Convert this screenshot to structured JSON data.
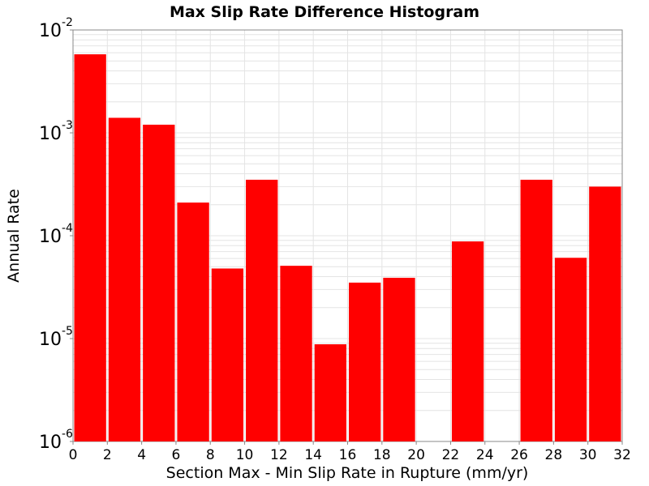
{
  "chart_data": {
    "type": "bar",
    "title": "Max Slip Rate Difference Histogram",
    "xlabel": "Section Max - Min Slip Rate in Rupture (mm/yr)",
    "ylabel": "Annual Rate",
    "xlim": [
      0,
      32
    ],
    "ylim": [
      1e-06,
      0.01
    ],
    "yscale": "log",
    "bin_width": 2,
    "x_ticks": [
      "0",
      "2",
      "4",
      "6",
      "8",
      "10",
      "12",
      "14",
      "16",
      "18",
      "20",
      "22",
      "24",
      "26",
      "28",
      "30",
      "32"
    ],
    "y_ticks": [
      {
        "base": "10",
        "exp": "-6"
      },
      {
        "base": "10",
        "exp": "-5"
      },
      {
        "base": "10",
        "exp": "-4"
      },
      {
        "base": "10",
        "exp": "-3"
      },
      {
        "base": "10",
        "exp": "-2"
      }
    ],
    "grid": true,
    "bar_color": "#ff0000",
    "bins": [
      {
        "x": 1,
        "value": 0.0058
      },
      {
        "x": 3,
        "value": 0.0014
      },
      {
        "x": 5,
        "value": 0.0012
      },
      {
        "x": 7,
        "value": 0.00021
      },
      {
        "x": 9,
        "value": 4.8e-05
      },
      {
        "x": 11,
        "value": 0.00035
      },
      {
        "x": 13,
        "value": 5.1e-05
      },
      {
        "x": 15,
        "value": 8.8e-06
      },
      {
        "x": 17,
        "value": 3.5e-05
      },
      {
        "x": 19,
        "value": 3.9e-05
      },
      {
        "x": 23,
        "value": 8.8e-05
      },
      {
        "x": 27,
        "value": 0.00035
      },
      {
        "x": 29,
        "value": 6.1e-05
      },
      {
        "x": 31,
        "value": 0.0003
      }
    ]
  }
}
